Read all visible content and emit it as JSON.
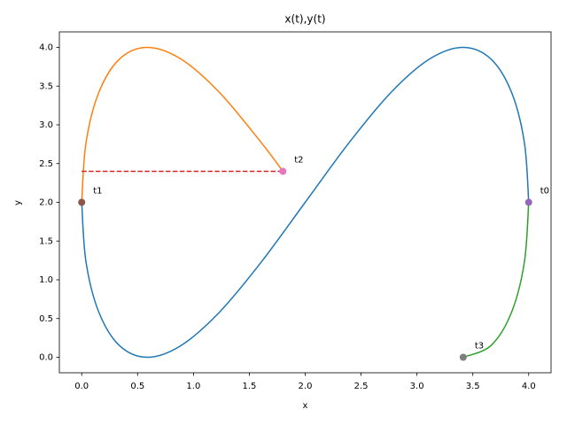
{
  "chart_data": {
    "type": "line",
    "title": "x(t),y(t)",
    "x_label": "x",
    "y_label": "y",
    "xlim": [
      -0.2,
      4.2
    ],
    "ylim": [
      -0.2,
      4.2
    ],
    "xticks": [
      {
        "value": 0,
        "label": "0.0"
      },
      {
        "value": 0.5,
        "label": "0.5"
      },
      {
        "value": 1,
        "label": "1.0"
      },
      {
        "value": 1.5,
        "label": "1.5"
      },
      {
        "value": 2,
        "label": "2.0"
      },
      {
        "value": 2.5,
        "label": "2.5"
      },
      {
        "value": 3,
        "label": "3.0"
      },
      {
        "value": 3.5,
        "label": "3.5"
      },
      {
        "value": 4,
        "label": "4.0"
      }
    ],
    "yticks": [
      {
        "value": 0,
        "label": "0.0"
      },
      {
        "value": 0.5,
        "label": "0.5"
      },
      {
        "value": 1,
        "label": "1.0"
      },
      {
        "value": 1.5,
        "label": "1.5"
      },
      {
        "value": 2,
        "label": "2.0"
      },
      {
        "value": 2.5,
        "label": "2.5"
      },
      {
        "value": 3,
        "label": "3.0"
      },
      {
        "value": 3.5,
        "label": "3.5"
      },
      {
        "value": 4,
        "label": "4.0"
      }
    ],
    "series": [
      {
        "color": "#1f77b4",
        "style": "solid",
        "x": [
          4,
          3.962,
          3.848,
          3.663,
          3.414,
          3.111,
          2.765,
          2.39,
          2,
          1.61,
          1.235,
          0.889,
          0.586,
          0.337,
          0.152,
          0.038,
          0
        ],
        "y": [
          2,
          2.765,
          3.414,
          3.848,
          4,
          3.848,
          3.414,
          2.765,
          2,
          1.235,
          0.586,
          0.152,
          0,
          0.152,
          0.586,
          1.235,
          2
        ]
      },
      {
        "color": "#ff7f0e",
        "style": "solid",
        "x": [
          0,
          0.038,
          0.152,
          0.337,
          0.586,
          0.889,
          1.235,
          1.61,
          1.8
        ],
        "y": [
          2,
          2.765,
          3.414,
          3.848,
          4,
          3.848,
          3.414,
          2.765,
          2.4
        ]
      },
      {
        "color": "#2ca02c",
        "style": "solid",
        "x": [
          3.414,
          3.663,
          3.848,
          3.962,
          4
        ],
        "y": [
          0,
          0.152,
          0.586,
          1.235,
          2
        ]
      },
      {
        "color": "#d62728",
        "style": "dashed",
        "x": [
          0,
          1.8
        ],
        "y": [
          2.4,
          2.4
        ]
      },
      {
        "color": "#9467bd",
        "style": "points",
        "x": [
          4
        ],
        "y": [
          2
        ]
      },
      {
        "color": "#8c564b",
        "style": "points",
        "x": [
          0
        ],
        "y": [
          2
        ]
      },
      {
        "color": "#e377c2",
        "style": "points",
        "x": [
          1.8
        ],
        "y": [
          2.4
        ]
      },
      {
        "color": "#7f7f7f",
        "style": "points",
        "x": [
          3.414
        ],
        "y": [
          0
        ]
      }
    ],
    "annotations": [
      {
        "text": "t0",
        "x": 4,
        "y": 2
      },
      {
        "text": "t1",
        "x": 0,
        "y": 2
      },
      {
        "text": "t2",
        "x": 1.8,
        "y": 2.4
      },
      {
        "text": "t3",
        "x": 3.414,
        "y": 0
      }
    ]
  }
}
